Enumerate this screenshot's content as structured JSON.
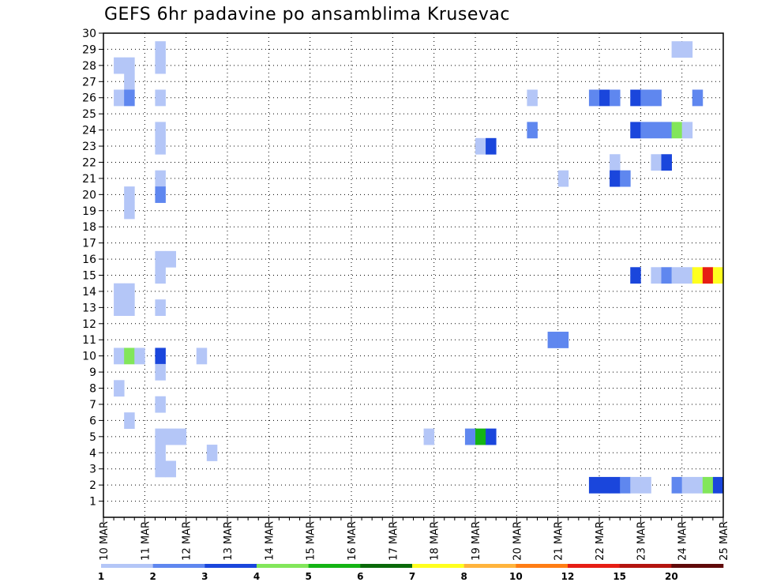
{
  "chart_data": {
    "type": "heatmap",
    "title": "GEFS 6hr padavine po ansamblima Krusevac",
    "xlabel": "",
    "ylabel": "",
    "x_ticks": [
      "10 MAR",
      "11 MAR",
      "12 MAR",
      "13 MAR",
      "14 MAR",
      "15 MAR",
      "16 MAR",
      "17 MAR",
      "18 MAR",
      "19 MAR",
      "20 MAR",
      "21 MAR",
      "22 MAR",
      "23 MAR",
      "24 MAR",
      "25 MAR"
    ],
    "y_ticks": [
      "1",
      "2",
      "3",
      "4",
      "5",
      "6",
      "7",
      "8",
      "9",
      "10",
      "11",
      "12",
      "13",
      "14",
      "15",
      "16",
      "17",
      "18",
      "19",
      "20",
      "21",
      "22",
      "23",
      "24",
      "25",
      "26",
      "27",
      "28",
      "29",
      "30"
    ],
    "xlim": [
      0,
      15
    ],
    "ylim": [
      0,
      30
    ],
    "time_step_hours": 6,
    "grid": true,
    "legend_placement": "bottom",
    "legend": {
      "labels": [
        "1",
        "2",
        "3",
        "4",
        "5",
        "6",
        "7",
        "8",
        "10",
        "12",
        "15",
        "20"
      ],
      "colors": [
        "#b4c6f7",
        "#5f87ef",
        "#1a46dc",
        "#82e65a",
        "#14b414",
        "#0a690a",
        "#ffff1e",
        "#ffb43c",
        "#ff7d14",
        "#e61e14",
        "#b4140f",
        "#600a0a"
      ]
    },
    "cells": [
      {
        "member": 28,
        "day": 0.25,
        "cls": 1
      },
      {
        "member": 28,
        "day": 0.5,
        "cls": 1
      },
      {
        "member": 27,
        "day": 0.5,
        "cls": 1
      },
      {
        "member": 26,
        "day": 0.25,
        "cls": 1
      },
      {
        "member": 26,
        "day": 0.5,
        "cls": 2
      },
      {
        "member": 20,
        "day": 0.5,
        "cls": 1
      },
      {
        "member": 19,
        "day": 0.5,
        "cls": 1
      },
      {
        "member": 14,
        "day": 0.25,
        "cls": 1
      },
      {
        "member": 14,
        "day": 0.5,
        "cls": 1
      },
      {
        "member": 13,
        "day": 0.25,
        "cls": 1
      },
      {
        "member": 13,
        "day": 0.5,
        "cls": 1
      },
      {
        "member": 10,
        "day": 0.25,
        "cls": 1
      },
      {
        "member": 10,
        "day": 0.5,
        "cls": 4
      },
      {
        "member": 10,
        "day": 0.75,
        "cls": 1
      },
      {
        "member": 8,
        "day": 0.25,
        "cls": 1
      },
      {
        "member": 6,
        "day": 0.5,
        "cls": 1
      },
      {
        "member": 29,
        "day": 1.25,
        "cls": 1
      },
      {
        "member": 28,
        "day": 1.25,
        "cls": 1
      },
      {
        "member": 26,
        "day": 1.25,
        "cls": 1
      },
      {
        "member": 24,
        "day": 1.25,
        "cls": 1
      },
      {
        "member": 23,
        "day": 1.25,
        "cls": 1
      },
      {
        "member": 21,
        "day": 1.25,
        "cls": 1
      },
      {
        "member": 20,
        "day": 1.25,
        "cls": 2
      },
      {
        "member": 16,
        "day": 1.25,
        "cls": 1
      },
      {
        "member": 16,
        "day": 1.5,
        "cls": 1
      },
      {
        "member": 15,
        "day": 1.25,
        "cls": 1
      },
      {
        "member": 13,
        "day": 1.25,
        "cls": 1
      },
      {
        "member": 10,
        "day": 1.25,
        "cls": 3
      },
      {
        "member": 9,
        "day": 1.25,
        "cls": 1
      },
      {
        "member": 7,
        "day": 1.25,
        "cls": 1
      },
      {
        "member": 5,
        "day": 1.25,
        "cls": 1
      },
      {
        "member": 5,
        "day": 1.5,
        "cls": 1
      },
      {
        "member": 5,
        "day": 1.75,
        "cls": 1
      },
      {
        "member": 4,
        "day": 1.25,
        "cls": 1
      },
      {
        "member": 3,
        "day": 1.25,
        "cls": 1
      },
      {
        "member": 3,
        "day": 1.5,
        "cls": 1
      },
      {
        "member": 10,
        "day": 2.25,
        "cls": 1
      },
      {
        "member": 4,
        "day": 2.5,
        "cls": 1
      },
      {
        "member": 5,
        "day": 7.75,
        "cls": 1
      },
      {
        "member": 5,
        "day": 8.75,
        "cls": 2
      },
      {
        "member": 5,
        "day": 9.0,
        "cls": 5
      },
      {
        "member": 5,
        "day": 9.25,
        "cls": 3
      },
      {
        "member": 23,
        "day": 9.0,
        "cls": 1
      },
      {
        "member": 23,
        "day": 9.25,
        "cls": 3
      },
      {
        "member": 26,
        "day": 10.25,
        "cls": 1
      },
      {
        "member": 24,
        "day": 10.25,
        "cls": 2
      },
      {
        "member": 11,
        "day": 10.75,
        "cls": 2
      },
      {
        "member": 11,
        "day": 11.0,
        "cls": 2
      },
      {
        "member": 21,
        "day": 11.0,
        "cls": 1
      },
      {
        "member": 26,
        "day": 11.75,
        "cls": 2
      },
      {
        "member": 26,
        "day": 12.0,
        "cls": 3
      },
      {
        "member": 26,
        "day": 12.25,
        "cls": 2
      },
      {
        "member": 22,
        "day": 12.25,
        "cls": 1
      },
      {
        "member": 21,
        "day": 12.25,
        "cls": 3
      },
      {
        "member": 21,
        "day": 12.5,
        "cls": 2
      },
      {
        "member": 2,
        "day": 11.75,
        "cls": 3
      },
      {
        "member": 2,
        "day": 12.0,
        "cls": 3
      },
      {
        "member": 2,
        "day": 12.25,
        "cls": 3
      },
      {
        "member": 2,
        "day": 12.5,
        "cls": 2
      },
      {
        "member": 2,
        "day": 12.75,
        "cls": 1
      },
      {
        "member": 2,
        "day": 13.0,
        "cls": 1
      },
      {
        "member": 26,
        "day": 12.75,
        "cls": 3
      },
      {
        "member": 26,
        "day": 13.0,
        "cls": 2
      },
      {
        "member": 26,
        "day": 13.25,
        "cls": 2
      },
      {
        "member": 26,
        "day": 14.25,
        "cls": 2
      },
      {
        "member": 24,
        "day": 12.75,
        "cls": 3
      },
      {
        "member": 24,
        "day": 13.0,
        "cls": 2
      },
      {
        "member": 24,
        "day": 13.25,
        "cls": 2
      },
      {
        "member": 24,
        "day": 13.5,
        "cls": 2
      },
      {
        "member": 24,
        "day": 13.75,
        "cls": 4
      },
      {
        "member": 24,
        "day": 14.0,
        "cls": 1
      },
      {
        "member": 22,
        "day": 13.25,
        "cls": 1
      },
      {
        "member": 22,
        "day": 13.5,
        "cls": 3
      },
      {
        "member": 29,
        "day": 13.75,
        "cls": 1
      },
      {
        "member": 29,
        "day": 14.0,
        "cls": 1
      },
      {
        "member": 15,
        "day": 12.75,
        "cls": 3
      },
      {
        "member": 15,
        "day": 13.25,
        "cls": 1
      },
      {
        "member": 15,
        "day": 13.5,
        "cls": 2
      },
      {
        "member": 15,
        "day": 13.75,
        "cls": 1
      },
      {
        "member": 15,
        "day": 14.0,
        "cls": 1
      },
      {
        "member": 15,
        "day": 14.25,
        "cls": 7
      },
      {
        "member": 15,
        "day": 14.5,
        "cls": 10
      },
      {
        "member": 15,
        "day": 14.75,
        "cls": 7
      },
      {
        "member": 2,
        "day": 13.75,
        "cls": 2
      },
      {
        "member": 2,
        "day": 14.0,
        "cls": 1
      },
      {
        "member": 2,
        "day": 14.25,
        "cls": 1
      },
      {
        "member": 2,
        "day": 14.5,
        "cls": 4
      },
      {
        "member": 2,
        "day": 14.75,
        "cls": 3
      }
    ]
  }
}
